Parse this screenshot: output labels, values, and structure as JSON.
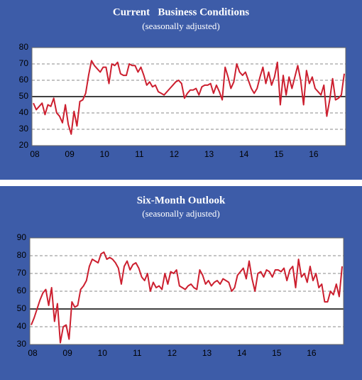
{
  "chart_data": [
    {
      "type": "line",
      "title": "Current   Business Conditions",
      "subtitle": "(seasonally adjusted)",
      "categories": [
        "08",
        null,
        null,
        null,
        null,
        null,
        null,
        null,
        null,
        null,
        null,
        null,
        "09",
        null,
        null,
        null,
        null,
        null,
        null,
        null,
        null,
        null,
        null,
        null,
        "10",
        null,
        null,
        null,
        null,
        null,
        null,
        null,
        null,
        null,
        null,
        null,
        "11",
        null,
        null,
        null,
        null,
        null,
        null,
        null,
        null,
        null,
        null,
        null,
        "12",
        null,
        null,
        null,
        null,
        null,
        null,
        null,
        null,
        null,
        null,
        null,
        "13",
        null,
        null,
        null,
        null,
        null,
        null,
        null,
        null,
        null,
        null,
        null,
        "14",
        null,
        null,
        null,
        null,
        null,
        null,
        null,
        null,
        null,
        null,
        null,
        "15",
        null,
        null,
        null,
        null,
        null,
        null,
        null,
        null,
        null,
        null,
        null,
        "16",
        null,
        null,
        null,
        null,
        null,
        null,
        null,
        null,
        null,
        null,
        null
      ],
      "values": [
        46,
        42,
        44,
        46,
        39,
        45,
        44,
        49,
        40,
        38,
        34,
        45,
        33,
        27,
        41,
        32,
        47,
        48,
        52,
        63,
        72,
        69,
        67,
        65,
        68,
        68,
        58,
        70,
        69,
        71,
        64,
        63,
        63,
        70,
        69,
        69,
        65,
        68,
        63,
        57,
        59,
        56,
        57,
        53,
        52,
        51,
        53,
        55,
        57,
        59,
        60,
        58,
        49,
        52,
        54,
        54,
        55,
        51,
        56,
        57,
        57,
        58,
        52,
        57,
        53,
        48,
        68,
        62,
        55,
        59,
        70,
        65,
        63,
        65,
        60,
        55,
        52,
        55,
        62,
        68,
        58,
        65,
        57,
        62,
        71,
        45,
        63,
        51,
        62,
        55,
        62,
        69,
        60,
        45,
        66,
        58,
        62,
        55,
        53,
        51,
        57,
        38,
        48,
        61,
        48,
        49,
        51,
        64
      ],
      "color": "#cc1f2f",
      "ylim": [
        20,
        80
      ],
      "yticks": [
        20,
        30,
        40,
        50,
        60,
        70,
        80
      ],
      "grid": true,
      "hline": 50
    },
    {
      "type": "line",
      "title": "Six-Month Outlook",
      "subtitle": "(seasonally adjusted)",
      "categories": [
        "08",
        null,
        null,
        null,
        null,
        null,
        null,
        null,
        null,
        null,
        null,
        null,
        "09",
        null,
        null,
        null,
        null,
        null,
        null,
        null,
        null,
        null,
        null,
        null,
        "10",
        null,
        null,
        null,
        null,
        null,
        null,
        null,
        null,
        null,
        null,
        null,
        "11",
        null,
        null,
        null,
        null,
        null,
        null,
        null,
        null,
        null,
        null,
        null,
        "12",
        null,
        null,
        null,
        null,
        null,
        null,
        null,
        null,
        null,
        null,
        null,
        "13",
        null,
        null,
        null,
        null,
        null,
        null,
        null,
        null,
        null,
        null,
        null,
        "14",
        null,
        null,
        null,
        null,
        null,
        null,
        null,
        null,
        null,
        null,
        null,
        "15",
        null,
        null,
        null,
        null,
        null,
        null,
        null,
        null,
        null,
        null,
        null,
        "16",
        null,
        null,
        null,
        null,
        null,
        null,
        null,
        null,
        null,
        null,
        null
      ],
      "values": [
        41,
        45,
        50,
        55,
        59,
        61,
        52,
        62,
        43,
        53,
        31,
        40,
        41,
        33,
        54,
        51,
        52,
        61,
        63,
        66,
        74,
        78,
        77,
        76,
        81,
        82,
        78,
        79,
        78,
        76,
        73,
        64,
        74,
        77,
        72,
        75,
        76,
        73,
        68,
        66,
        70,
        60,
        65,
        62,
        63,
        61,
        70,
        64,
        71,
        70,
        72,
        63,
        62,
        61,
        63,
        64,
        62,
        61,
        72,
        69,
        64,
        66,
        63,
        65,
        66,
        64,
        67,
        66,
        65,
        60,
        62,
        69,
        71,
        73,
        67,
        77,
        67,
        60,
        70,
        71,
        68,
        72,
        71,
        68,
        72,
        72,
        71,
        73,
        66,
        72,
        74,
        62,
        78,
        68,
        70,
        65,
        74,
        66,
        70,
        62,
        64,
        54,
        54,
        60,
        58,
        64,
        57,
        74
      ],
      "color": "#cc1f2f",
      "ylim": [
        30,
        90
      ],
      "yticks": [
        30,
        40,
        50,
        60,
        70,
        80,
        90
      ],
      "grid": true,
      "hline": 50
    }
  ]
}
